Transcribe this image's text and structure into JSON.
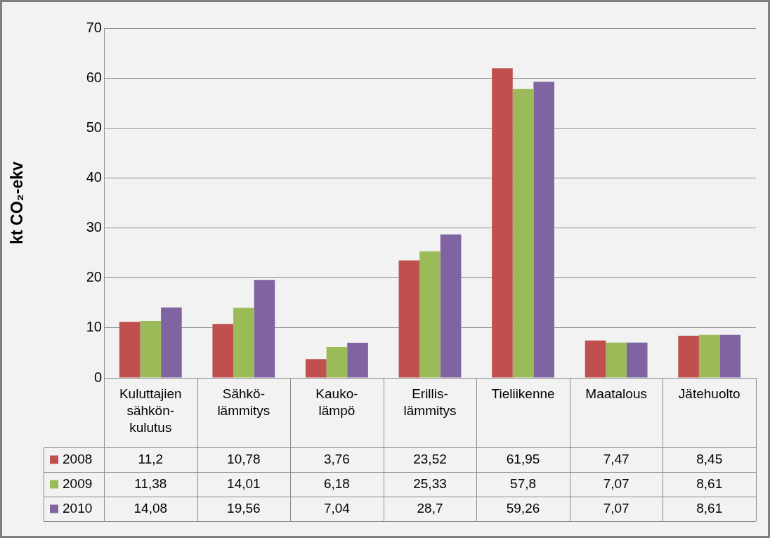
{
  "chart_data": {
    "type": "bar",
    "ylabel": "kt CO₂-ekv",
    "categories": [
      "Kuluttajien sähkön-kulutus",
      "Sähkö-lämmitys",
      "Kauko-lämpö",
      "Erillis-lämmitys",
      "Tieliikenne",
      "Maatalous",
      "Jätehuolto"
    ],
    "series": [
      {
        "name": "2008",
        "color": "#c0504d",
        "values": [
          11.2,
          10.78,
          3.76,
          23.52,
          61.95,
          7.47,
          8.45
        ],
        "value_labels": [
          "11,2",
          "10,78",
          "3,76",
          "23,52",
          "61,95",
          "7,47",
          "8,45"
        ]
      },
      {
        "name": "2009",
        "color": "#9bbb59",
        "values": [
          11.38,
          14.01,
          6.18,
          25.33,
          57.8,
          7.07,
          8.61
        ],
        "value_labels": [
          "11,38",
          "14,01",
          "6,18",
          "25,33",
          "57,8",
          "7,07",
          "8,61"
        ]
      },
      {
        "name": "2010",
        "color": "#8064a2",
        "values": [
          14.08,
          19.56,
          7.04,
          28.7,
          59.26,
          7.07,
          8.61
        ],
        "value_labels": [
          "14,08",
          "19,56",
          "7,04",
          "28,7",
          "59,26",
          "7,07",
          "8,61"
        ]
      }
    ],
    "ylim": [
      0,
      70
    ],
    "yticks": [
      0,
      10,
      20,
      30,
      40,
      50,
      60,
      70
    ],
    "grid": "y",
    "legend": "bottom left"
  }
}
